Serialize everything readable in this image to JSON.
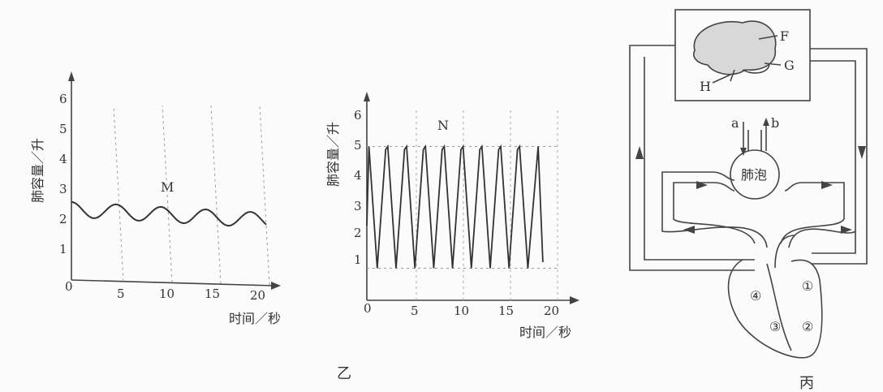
{
  "panel_m": {
    "ylabel": "肺容量／升",
    "xlabel": "时间／秒",
    "curve_label": "M",
    "yticks": [
      "1",
      "2",
      "3",
      "4",
      "5",
      "6"
    ],
    "xticks": [
      "5",
      "10",
      "15",
      "20"
    ],
    "origin": "0"
  },
  "panel_n": {
    "ylabel": "肺容量／升",
    "xlabel": "时间／秒",
    "curve_label": "N",
    "yticks": [
      "1",
      "2",
      "3",
      "4",
      "5",
      "6"
    ],
    "xticks": [
      "5",
      "10",
      "15",
      "20"
    ],
    "origin": "0",
    "caption": "乙"
  },
  "panel_c": {
    "brain_labels": {
      "f": "F",
      "g": "G",
      "h": "H"
    },
    "flow_labels": {
      "a": "a",
      "b": "b"
    },
    "alveolus": "肺泡",
    "chambers": {
      "c1": "①",
      "c2": "②",
      "c3": "③",
      "c4": "④"
    },
    "caption": "丙"
  },
  "chart_data": [
    {
      "type": "line",
      "series": [
        {
          "name": "M",
          "x": [
            0,
            2.5,
            5,
            7.5,
            10,
            12.5,
            15,
            17.5,
            20
          ],
          "values": [
            2.5,
            2.2,
            2.7,
            2.2,
            2.6,
            2.1,
            2.5,
            2.0,
            2.4
          ]
        }
      ],
      "xlabel": "时间／秒",
      "ylabel": "肺容量／升",
      "xlim": [
        0,
        20
      ],
      "ylim": [
        0,
        6
      ]
    },
    {
      "type": "line",
      "series": [
        {
          "name": "N",
          "cycles": 9,
          "max": 5,
          "min": 1
        }
      ],
      "xlabel": "时间／秒",
      "ylabel": "肺容量／升",
      "xlim": [
        0,
        20
      ],
      "ylim": [
        0,
        6
      ]
    }
  ]
}
